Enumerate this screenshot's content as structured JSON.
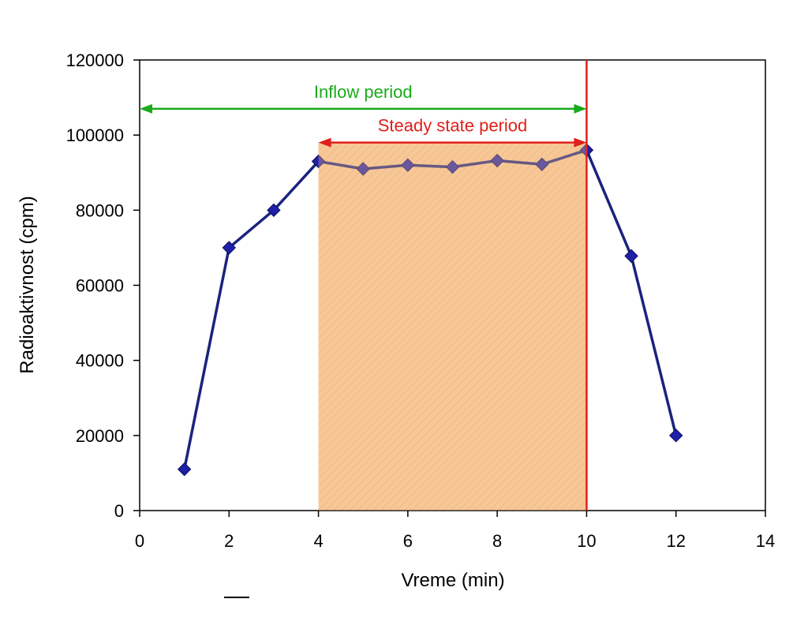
{
  "chart_data": {
    "type": "line",
    "title": "",
    "xlabel": "Vreme (min)",
    "ylabel": "Radioaktivnost (cpm)",
    "xlim": [
      0,
      14
    ],
    "ylim": [
      0,
      120000
    ],
    "x_ticks": [
      0,
      2,
      4,
      6,
      8,
      10,
      12,
      14
    ],
    "y_ticks": [
      0,
      20000,
      40000,
      60000,
      80000,
      100000,
      120000
    ],
    "x_tick_labels": [
      "0",
      "2",
      "4",
      "6",
      "8",
      "10",
      "12",
      "14"
    ],
    "y_tick_labels": [
      "0",
      "20000",
      "40000",
      "60000",
      "80000",
      "100000",
      "120000"
    ],
    "grid": false,
    "legend": "none",
    "series": [
      {
        "x": [
          1,
          2,
          3,
          4,
          5,
          6,
          7,
          8,
          9,
          10,
          11,
          12
        ],
        "y": [
          11000,
          70000,
          80000,
          93000,
          91000,
          92000,
          91500,
          93200,
          92200,
          96000,
          67800,
          20000
        ],
        "color": "#1a237e",
        "marker": "diamond",
        "marker_color": "#1f1fa8"
      }
    ],
    "annotations": [
      {
        "text": "Inflow period",
        "x_start": 0,
        "x_end": 10,
        "y": 107000,
        "color": "#1aaa1a"
      },
      {
        "text": "Steady state period",
        "x_start": 4,
        "x_end": 10,
        "y": 98000,
        "color": "#e0201a"
      }
    ],
    "shaded_region": {
      "x_start": 4,
      "x_end": 10,
      "y_start": 0,
      "y_end": 98000,
      "color": "#f6c08a"
    },
    "vertical_line": {
      "x": 10,
      "color": "#e0201a"
    }
  }
}
